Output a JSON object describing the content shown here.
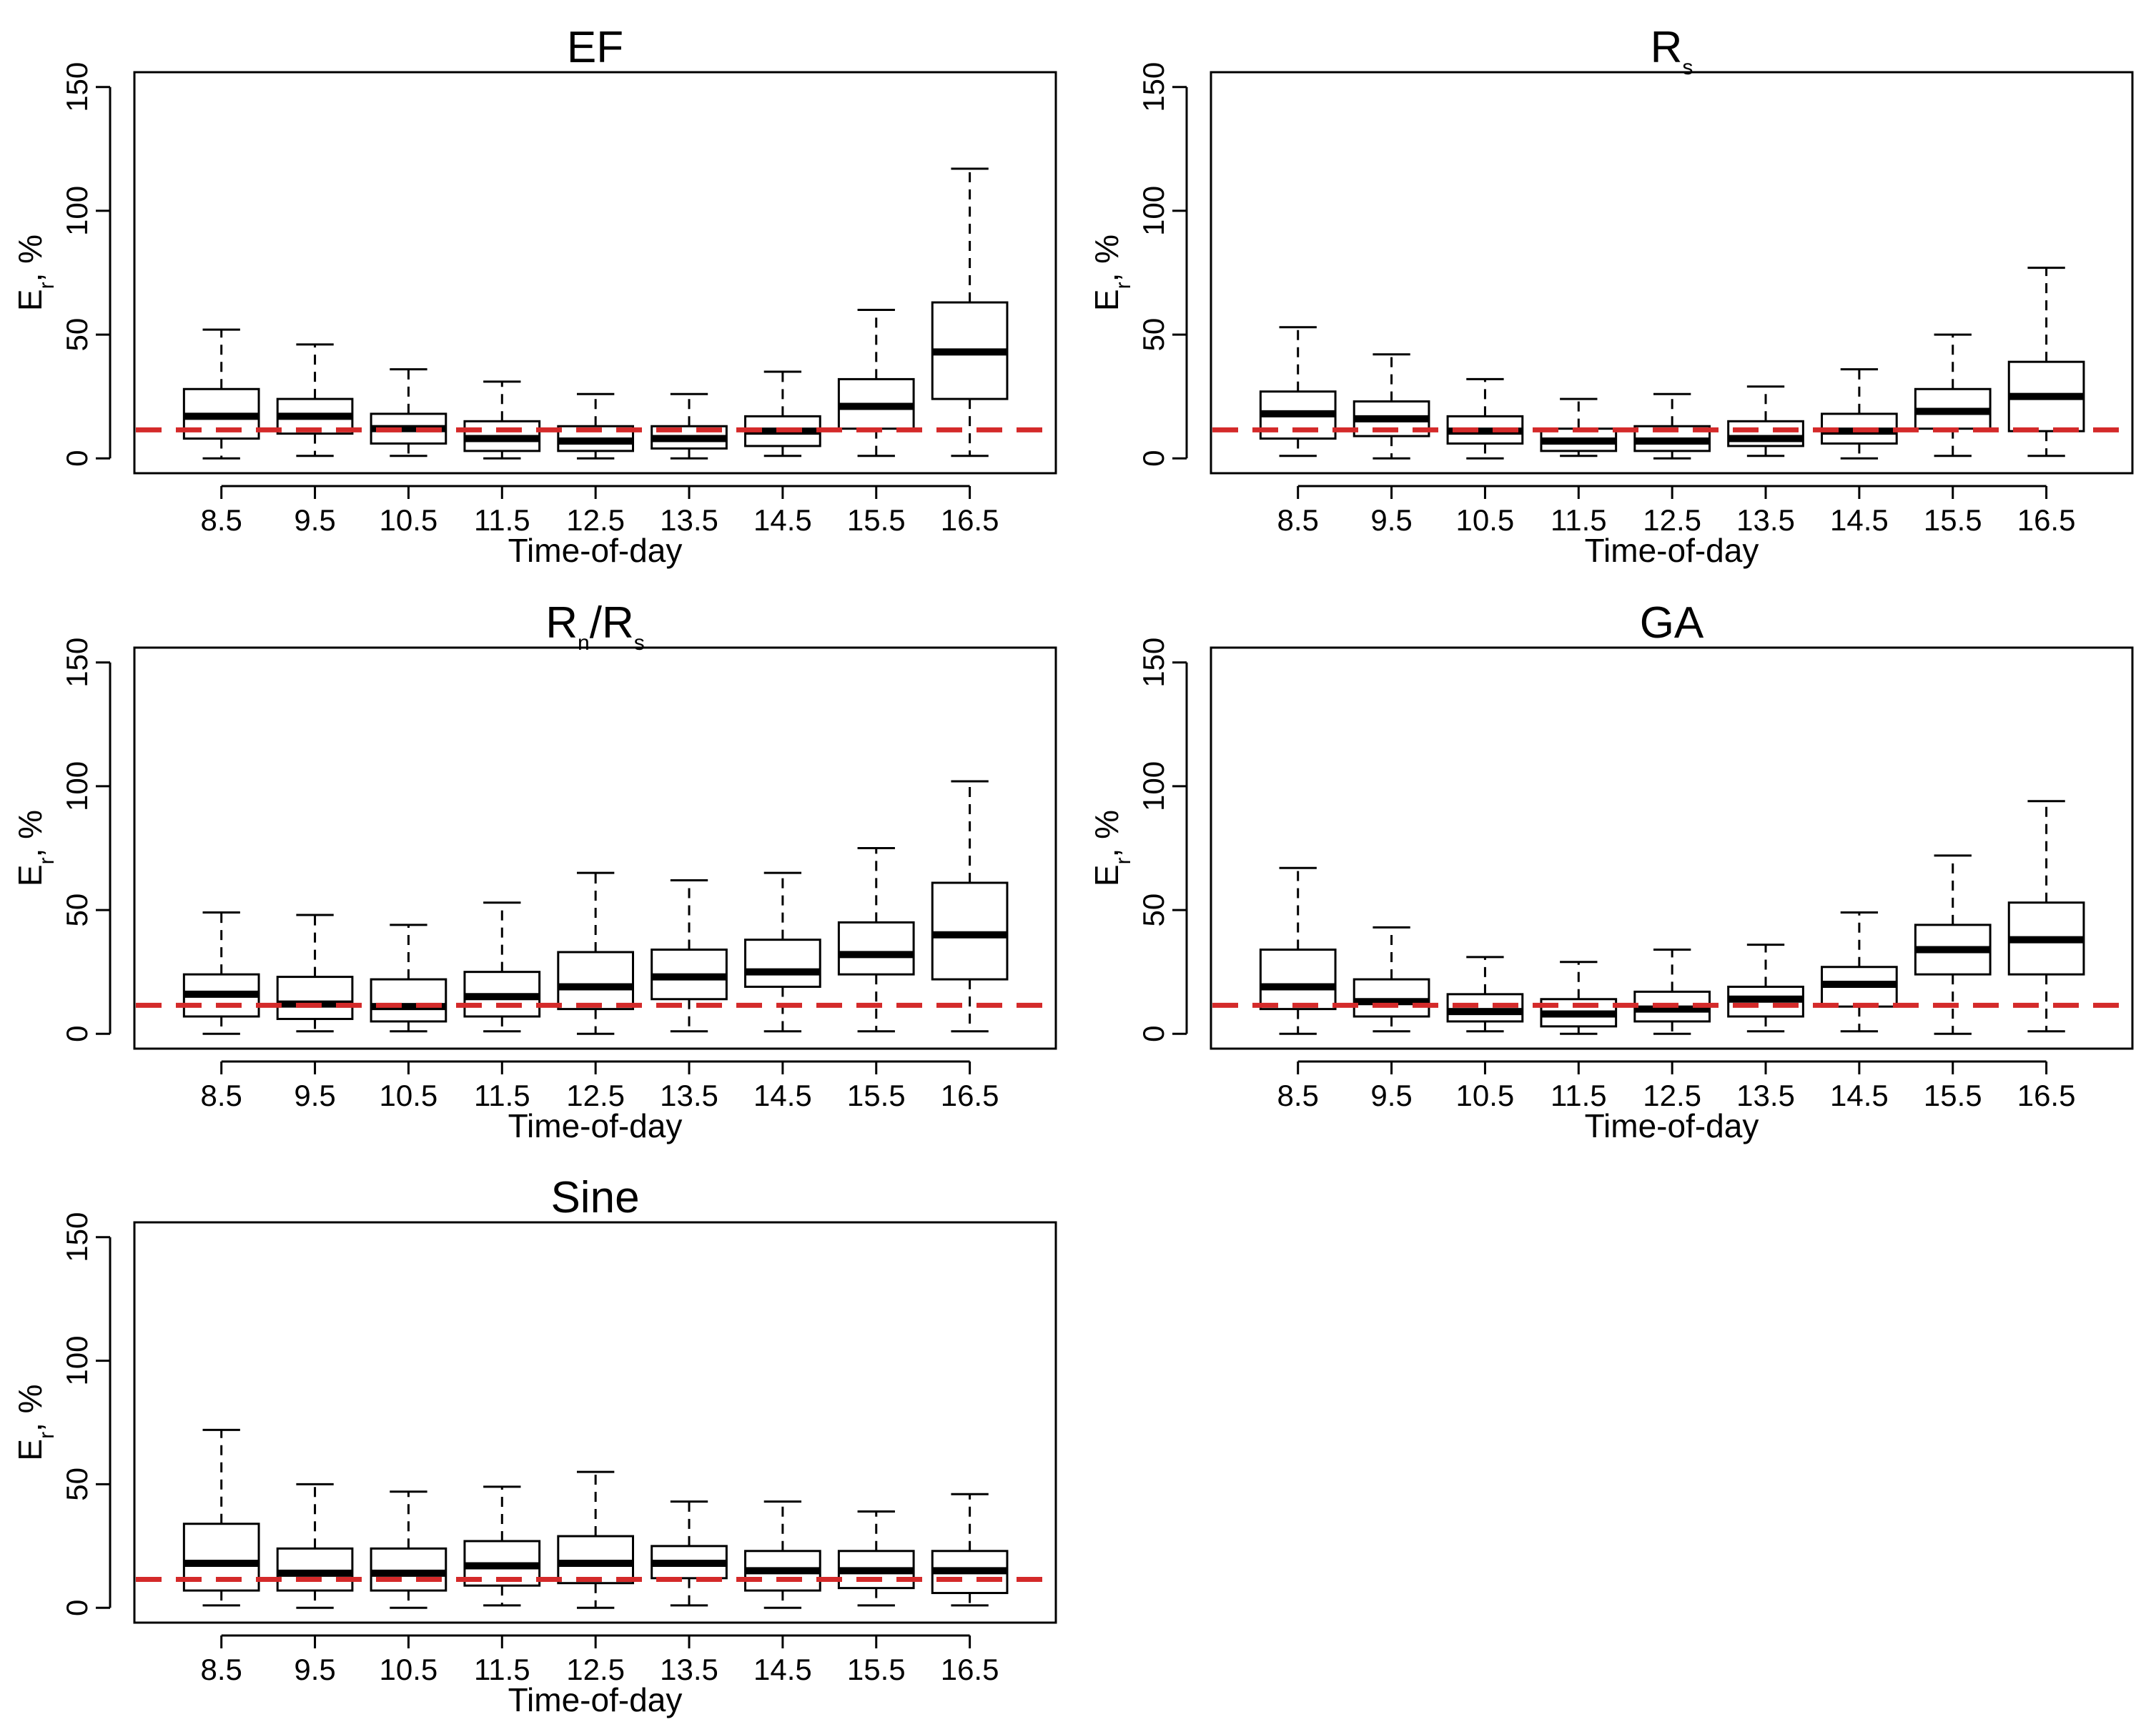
{
  "colors": {
    "reference": "#d42a2a",
    "box": "#000000",
    "background": "#ffffff"
  },
  "chart_data": [
    {
      "type": "boxplot",
      "title": {
        "main": "EF",
        "sub": ""
      },
      "xlabel": "Time-of-day",
      "ylabel": {
        "main": "E",
        "sub": "r",
        "suffix": ", %"
      },
      "ylim": [
        0,
        150
      ],
      "yticks": [
        "0",
        "50",
        "100",
        "150"
      ],
      "categories": [
        "8.5",
        "9.5",
        "10.5",
        "11.5",
        "12.5",
        "13.5",
        "14.5",
        "15.5",
        "16.5"
      ],
      "reference_line": 11.5,
      "boxes": [
        {
          "min": 0,
          "q1": 8,
          "median": 17,
          "q3": 28,
          "max": 52
        },
        {
          "min": 1,
          "q1": 10,
          "median": 17,
          "q3": 24,
          "max": 46
        },
        {
          "min": 1,
          "q1": 6,
          "median": 12,
          "q3": 18,
          "max": 36
        },
        {
          "min": 0,
          "q1": 3,
          "median": 8,
          "q3": 15,
          "max": 31
        },
        {
          "min": 0,
          "q1": 3,
          "median": 7,
          "q3": 13,
          "max": 26
        },
        {
          "min": 0,
          "q1": 4,
          "median": 8,
          "q3": 13,
          "max": 26
        },
        {
          "min": 1,
          "q1": 5,
          "median": 11,
          "q3": 17,
          "max": 35
        },
        {
          "min": 1,
          "q1": 12,
          "median": 21,
          "q3": 32,
          "max": 60
        },
        {
          "min": 1,
          "q1": 24,
          "median": 43,
          "q3": 63,
          "max": 117
        }
      ]
    },
    {
      "type": "boxplot",
      "title": {
        "main": "R",
        "sub": "s"
      },
      "xlabel": "Time-of-day",
      "ylabel": {
        "main": "E",
        "sub": "r",
        "suffix": ", %"
      },
      "ylim": [
        0,
        150
      ],
      "yticks": [
        "0",
        "50",
        "100",
        "150"
      ],
      "categories": [
        "8.5",
        "9.5",
        "10.5",
        "11.5",
        "12.5",
        "13.5",
        "14.5",
        "15.5",
        "16.5"
      ],
      "reference_line": 11.5,
      "boxes": [
        {
          "min": 1,
          "q1": 8,
          "median": 18,
          "q3": 27,
          "max": 53
        },
        {
          "min": 0,
          "q1": 9,
          "median": 16,
          "q3": 23,
          "max": 42
        },
        {
          "min": 0,
          "q1": 6,
          "median": 11,
          "q3": 17,
          "max": 32
        },
        {
          "min": 1,
          "q1": 3,
          "median": 7,
          "q3": 12,
          "max": 24
        },
        {
          "min": 0,
          "q1": 3,
          "median": 7,
          "q3": 13,
          "max": 26
        },
        {
          "min": 1,
          "q1": 5,
          "median": 8,
          "q3": 15,
          "max": 29
        },
        {
          "min": 0,
          "q1": 6,
          "median": 11,
          "q3": 18,
          "max": 36
        },
        {
          "min": 1,
          "q1": 12,
          "median": 19,
          "q3": 28,
          "max": 50
        },
        {
          "min": 1,
          "q1": 11,
          "median": 25,
          "q3": 39,
          "max": 77
        }
      ]
    },
    {
      "type": "boxplot",
      "title": {
        "main": "R",
        "sub": "n",
        "mid": "/R",
        "sub2": "s"
      },
      "xlabel": "Time-of-day",
      "ylabel": {
        "main": "E",
        "sub": "r",
        "suffix": ", %"
      },
      "ylim": [
        0,
        150
      ],
      "yticks": [
        "0",
        "50",
        "100",
        "150"
      ],
      "categories": [
        "8.5",
        "9.5",
        "10.5",
        "11.5",
        "12.5",
        "13.5",
        "14.5",
        "15.5",
        "16.5"
      ],
      "reference_line": 11.5,
      "boxes": [
        {
          "min": 0,
          "q1": 7,
          "median": 16,
          "q3": 24,
          "max": 49
        },
        {
          "min": 1,
          "q1": 6,
          "median": 12,
          "q3": 23,
          "max": 48
        },
        {
          "min": 1,
          "q1": 5,
          "median": 11,
          "q3": 22,
          "max": 44
        },
        {
          "min": 1,
          "q1": 7,
          "median": 15,
          "q3": 25,
          "max": 53
        },
        {
          "min": 0,
          "q1": 10,
          "median": 19,
          "q3": 33,
          "max": 65
        },
        {
          "min": 1,
          "q1": 14,
          "median": 23,
          "q3": 34,
          "max": 62
        },
        {
          "min": 1,
          "q1": 19,
          "median": 25,
          "q3": 38,
          "max": 65
        },
        {
          "min": 1,
          "q1": 24,
          "median": 32,
          "q3": 45,
          "max": 75
        },
        {
          "min": 1,
          "q1": 22,
          "median": 40,
          "q3": 61,
          "max": 102
        }
      ]
    },
    {
      "type": "boxplot",
      "title": {
        "main": "GA",
        "sub": ""
      },
      "xlabel": "Time-of-day",
      "ylabel": {
        "main": "E",
        "sub": "r",
        "suffix": ", %"
      },
      "ylim": [
        0,
        150
      ],
      "yticks": [
        "0",
        "50",
        "100",
        "150"
      ],
      "categories": [
        "8.5",
        "9.5",
        "10.5",
        "11.5",
        "12.5",
        "13.5",
        "14.5",
        "15.5",
        "16.5"
      ],
      "reference_line": 11.5,
      "boxes": [
        {
          "min": 0,
          "q1": 10,
          "median": 19,
          "q3": 34,
          "max": 67
        },
        {
          "min": 1,
          "q1": 7,
          "median": 13,
          "q3": 22,
          "max": 43
        },
        {
          "min": 1,
          "q1": 5,
          "median": 9,
          "q3": 16,
          "max": 31
        },
        {
          "min": 0,
          "q1": 3,
          "median": 8,
          "q3": 14,
          "max": 29
        },
        {
          "min": 0,
          "q1": 5,
          "median": 10,
          "q3": 17,
          "max": 34
        },
        {
          "min": 1,
          "q1": 7,
          "median": 14,
          "q3": 19,
          "max": 36
        },
        {
          "min": 1,
          "q1": 11,
          "median": 20,
          "q3": 27,
          "max": 49
        },
        {
          "min": 0,
          "q1": 24,
          "median": 34,
          "q3": 44,
          "max": 72
        },
        {
          "min": 1,
          "q1": 24,
          "median": 38,
          "q3": 53,
          "max": 94
        }
      ]
    },
    {
      "type": "boxplot",
      "title": {
        "main": "Sine",
        "sub": ""
      },
      "xlabel": "Time-of-day",
      "ylabel": {
        "main": "E",
        "sub": "r",
        "suffix": ", %"
      },
      "ylim": [
        0,
        150
      ],
      "yticks": [
        "0",
        "50",
        "100",
        "150"
      ],
      "categories": [
        "8.5",
        "9.5",
        "10.5",
        "11.5",
        "12.5",
        "13.5",
        "14.5",
        "15.5",
        "16.5"
      ],
      "reference_line": 11.5,
      "boxes": [
        {
          "min": 1,
          "q1": 7,
          "median": 18,
          "q3": 34,
          "max": 72
        },
        {
          "min": 0,
          "q1": 7,
          "median": 14,
          "q3": 24,
          "max": 50
        },
        {
          "min": 0,
          "q1": 7,
          "median": 14,
          "q3": 24,
          "max": 47
        },
        {
          "min": 1,
          "q1": 9,
          "median": 17,
          "q3": 27,
          "max": 49
        },
        {
          "min": 0,
          "q1": 10,
          "median": 18,
          "q3": 29,
          "max": 55
        },
        {
          "min": 1,
          "q1": 12,
          "median": 18,
          "q3": 25,
          "max": 43
        },
        {
          "min": 0,
          "q1": 7,
          "median": 15,
          "q3": 23,
          "max": 43
        },
        {
          "min": 1,
          "q1": 8,
          "median": 15,
          "q3": 23,
          "max": 39
        },
        {
          "min": 1,
          "q1": 6,
          "median": 15,
          "q3": 23,
          "max": 46
        }
      ]
    }
  ]
}
